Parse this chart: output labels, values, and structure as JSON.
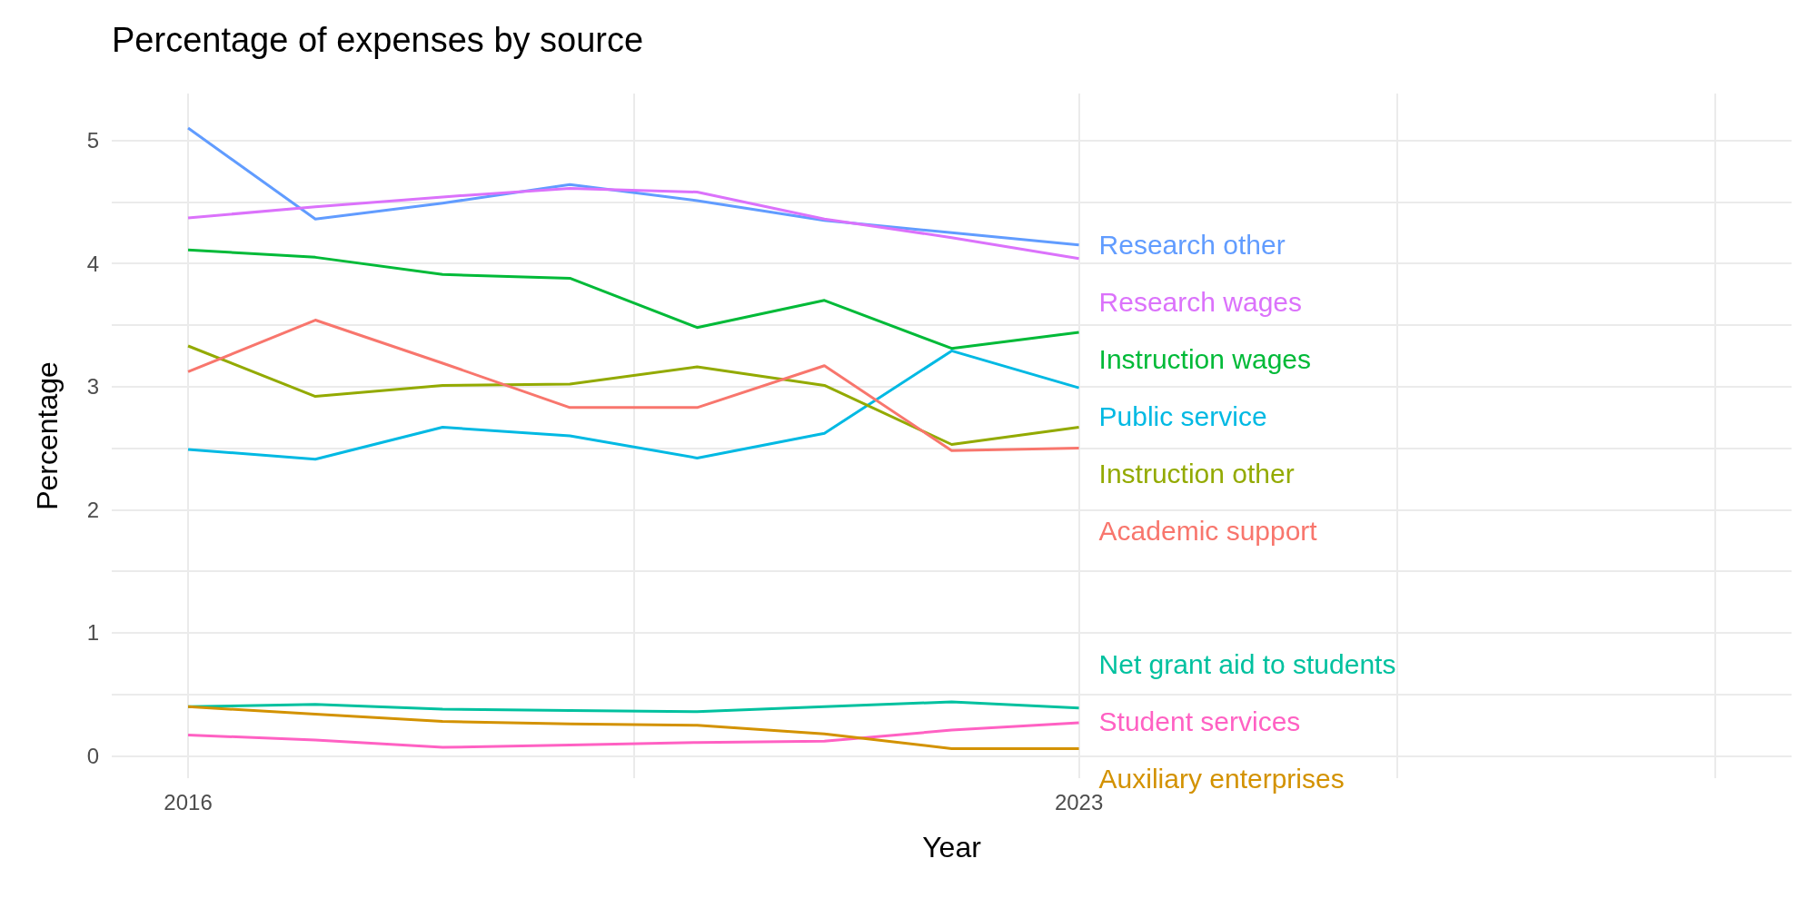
{
  "chart_data": {
    "type": "line",
    "title": "Percentage of expenses by source",
    "xlabel": "Year",
    "ylabel": "Percentage",
    "x": [
      2016,
      2017,
      2018,
      2019,
      2020,
      2021,
      2022,
      2023
    ],
    "xlim": [
      2015.4,
      2028.6
    ],
    "xticks": [
      2016,
      {
        "value": 2019.5,
        "label": null
      },
      2023,
      {
        "value": 2025.5,
        "label": null
      },
      {
        "value": 2028,
        "label": null
      }
    ],
    "ylim": [
      -0.18,
      5.38
    ],
    "yticks": [
      0,
      {
        "value": 0.5,
        "label": null
      },
      1,
      {
        "value": 1.5,
        "label": null
      },
      2,
      {
        "value": 2.5,
        "label": null
      },
      3,
      {
        "value": 3.5,
        "label": null
      },
      4,
      {
        "value": 4.5,
        "label": null
      },
      5
    ],
    "grid": true,
    "legend": false,
    "marker": "none",
    "line_style": "solid",
    "series": [
      {
        "name": "Research other",
        "color": "#619cff",
        "values": [
          5.1,
          4.36,
          4.49,
          4.64,
          4.51,
          4.35,
          4.25,
          4.15
        ]
      },
      {
        "name": "Research wages",
        "color": "#db72fb",
        "values": [
          4.37,
          4.46,
          4.54,
          4.61,
          4.58,
          4.36,
          4.21,
          4.04
        ]
      },
      {
        "name": "Instruction wages",
        "color": "#00ba38",
        "values": [
          4.11,
          4.05,
          3.91,
          3.88,
          3.48,
          3.7,
          3.31,
          3.44
        ]
      },
      {
        "name": "Public service",
        "color": "#00b9e3",
        "values": [
          2.49,
          2.41,
          2.67,
          2.6,
          2.42,
          2.62,
          3.29,
          2.99
        ]
      },
      {
        "name": "Instruction other",
        "color": "#93aa00",
        "values": [
          3.33,
          2.92,
          3.01,
          3.02,
          3.16,
          3.01,
          2.53,
          2.67
        ]
      },
      {
        "name": "Academic support",
        "color": "#f8766d",
        "values": [
          3.12,
          3.54,
          3.19,
          2.83,
          2.83,
          3.17,
          2.48,
          2.5
        ]
      },
      {
        "name": "Net grant aid to students",
        "color": "#00c19f",
        "values": [
          0.4,
          0.42,
          0.38,
          0.37,
          0.36,
          0.4,
          0.44,
          0.39
        ]
      },
      {
        "name": "Student services",
        "color": "#ff61c3",
        "values": [
          0.17,
          0.13,
          0.07,
          0.09,
          0.11,
          0.12,
          0.21,
          0.27
        ]
      },
      {
        "name": "Auxiliary enterprises",
        "color": "#d39200",
        "values": [
          0.4,
          0.34,
          0.28,
          0.26,
          0.25,
          0.18,
          0.06,
          0.06
        ]
      }
    ]
  }
}
